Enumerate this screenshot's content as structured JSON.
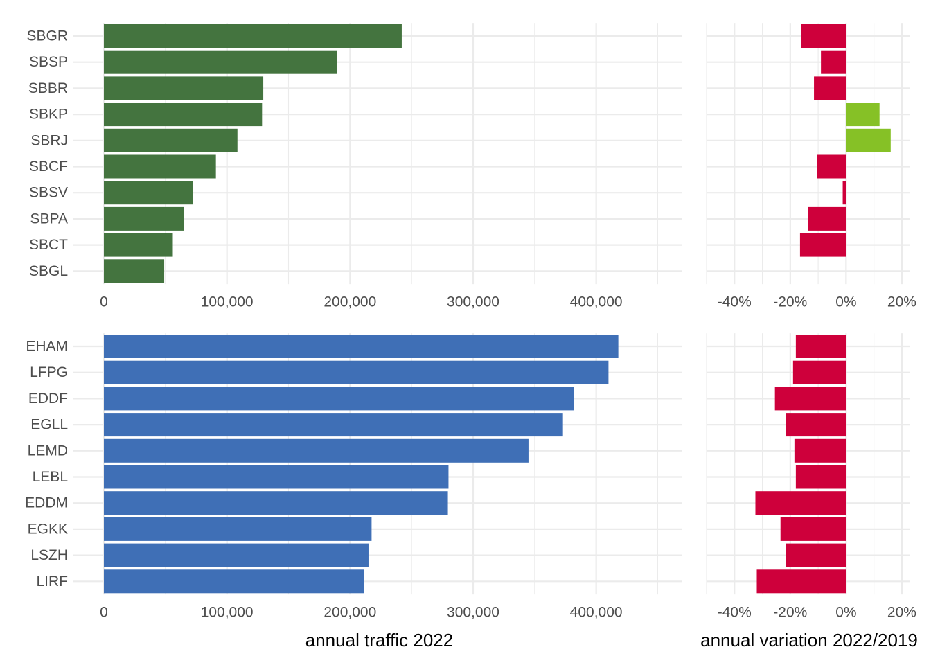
{
  "chart_data": [
    {
      "type": "bar",
      "orientation": "horizontal",
      "panel": "top-left",
      "categories": [
        "SBGR",
        "SBSP",
        "SBBR",
        "SBKP",
        "SBRJ",
        "SBCF",
        "SBSV",
        "SBPA",
        "SBCT",
        "SBGL"
      ],
      "values": [
        242000,
        189500,
        129500,
        128500,
        108500,
        91000,
        72500,
        65000,
        56000,
        49000
      ],
      "xlim": [
        0,
        470000
      ],
      "xticks": [
        0,
        100000,
        200000,
        300000,
        400000
      ],
      "xtick_labels": [
        "0",
        "100,000",
        "200,000",
        "300,000",
        "400,000"
      ],
      "xlabel": "",
      "color": "#44743f",
      "grid": true
    },
    {
      "type": "bar",
      "orientation": "horizontal",
      "panel": "top-right",
      "categories": [
        "SBGR",
        "SBSP",
        "SBBR",
        "SBKP",
        "SBRJ",
        "SBCF",
        "SBSV",
        "SBPA",
        "SBCT",
        "SBGL"
      ],
      "values": [
        -16,
        -9,
        -11.5,
        12,
        16,
        -10.5,
        -1.2,
        -13.5,
        -16.5,
        null
      ],
      "unit": "%",
      "xlim": [
        -50,
        23
      ],
      "xticks": [
        -40,
        -20,
        0,
        20
      ],
      "xtick_labels": [
        "-40%",
        "-20%",
        "0%",
        "20%"
      ],
      "xlabel": "",
      "colors": {
        "negative": "#ce003b",
        "positive": "#86c126"
      },
      "grid": true
    },
    {
      "type": "bar",
      "orientation": "horizontal",
      "panel": "bottom-left",
      "categories": [
        "EHAM",
        "LFPG",
        "EDDF",
        "EGLL",
        "LEMD",
        "LEBL",
        "EDDM",
        "EGKK",
        "LSZH",
        "LIRF"
      ],
      "values": [
        418000,
        410000,
        382000,
        373000,
        345000,
        280000,
        279500,
        217500,
        215000,
        211500
      ],
      "xlim": [
        0,
        470000
      ],
      "xticks": [
        0,
        100000,
        200000,
        300000,
        400000
      ],
      "xtick_labels": [
        "0",
        "100,000",
        "200,000",
        "300,000",
        "400,000"
      ],
      "xlabel": "annual traffic 2022",
      "color": "#3f6fb6",
      "grid": true
    },
    {
      "type": "bar",
      "orientation": "horizontal",
      "panel": "bottom-right",
      "categories": [
        "EHAM",
        "LFPG",
        "EDDF",
        "EGLL",
        "LEMD",
        "LEBL",
        "EDDM",
        "EGKK",
        "LSZH",
        "LIRF"
      ],
      "values": [
        -18,
        -19,
        -25.5,
        -21.5,
        -18.5,
        -18,
        -32.5,
        -23.5,
        -21.5,
        -32
      ],
      "unit": "%",
      "xlim": [
        -50,
        23
      ],
      "xticks": [
        -40,
        -20,
        0,
        20
      ],
      "xtick_labels": [
        "-40%",
        "-20%",
        "0%",
        "20%"
      ],
      "xlabel": "annual variation 2022/2019",
      "colors": {
        "negative": "#ce003b",
        "positive": "#86c126"
      },
      "grid": true
    }
  ]
}
